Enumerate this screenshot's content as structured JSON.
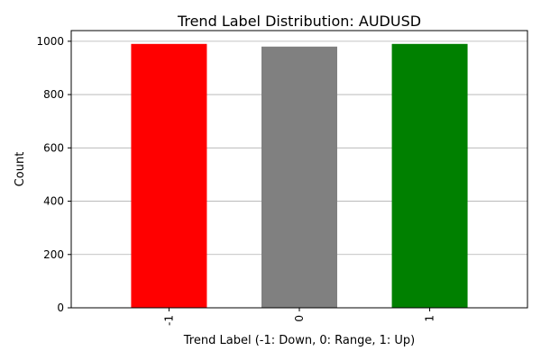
{
  "chart_data": {
    "type": "bar",
    "title": "Trend Label Distribution: AUDUSD",
    "xlabel": "Trend Label (-1: Down, 0: Range, 1: Up)",
    "ylabel": "Count",
    "categories": [
      "-1",
      "0",
      "1"
    ],
    "values": [
      990,
      980,
      990
    ],
    "colors": [
      "#ff0000",
      "#808080",
      "#008000"
    ],
    "ylim": [
      0,
      1040
    ],
    "yticks": [
      0,
      200,
      400,
      600,
      800,
      1000
    ],
    "grid": "y",
    "legend": "none"
  }
}
